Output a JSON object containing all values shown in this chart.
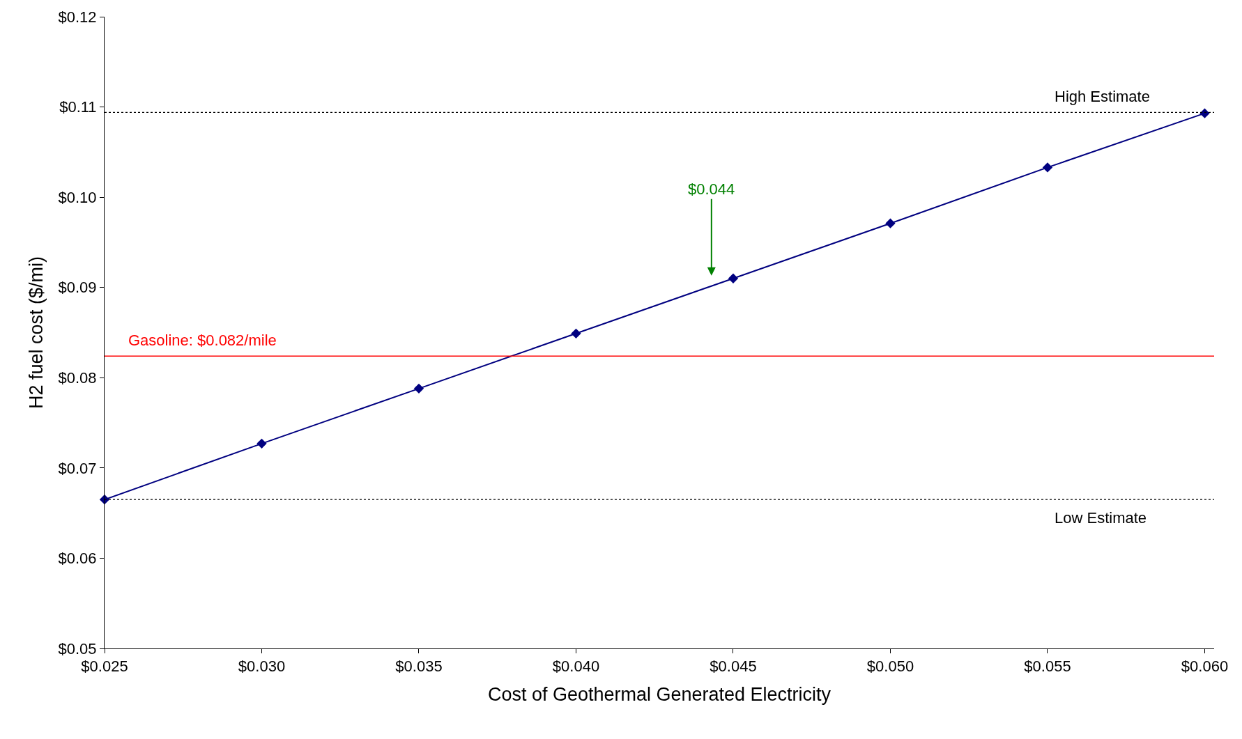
{
  "chart_data": {
    "type": "line",
    "xlabel": "Cost of Geothermal Generated Electricity",
    "ylabel": "H2 fuel cost ($/mi)",
    "x": [
      0.025,
      0.03,
      0.035,
      0.04,
      0.045,
      0.05,
      0.055,
      0.06
    ],
    "series": [
      {
        "color": "#000080",
        "values": [
          0.0665,
          0.0727,
          0.0788,
          0.0849,
          0.091,
          0.0971,
          0.1033,
          0.1093
        ]
      }
    ],
    "marker": "diamond",
    "line_style": "solid",
    "xlim": [
      0.025,
      0.0603
    ],
    "xticks": [
      {
        "value": 0.025,
        "label": "$0.025"
      },
      {
        "value": 0.03,
        "label": "$0.030"
      },
      {
        "value": 0.035,
        "label": "$0.035"
      },
      {
        "value": 0.04,
        "label": "$0.040"
      },
      {
        "value": 0.045,
        "label": "$0.045"
      },
      {
        "value": 0.05,
        "label": "$0.050"
      },
      {
        "value": 0.055,
        "label": "$0.055"
      },
      {
        "value": 0.06,
        "label": "$0.060"
      }
    ],
    "ylim": [
      0.05,
      0.12
    ],
    "yticks": [
      {
        "value": 0.05,
        "label": "$0.05"
      },
      {
        "value": 0.06,
        "label": "$0.06"
      },
      {
        "value": 0.07,
        "label": "$0.07"
      },
      {
        "value": 0.08,
        "label": "$0.08"
      },
      {
        "value": 0.09,
        "label": "$0.09"
      },
      {
        "value": 0.1,
        "label": "$0.10"
      },
      {
        "value": 0.11,
        "label": "$0.11"
      },
      {
        "value": 0.12,
        "label": "$0.12"
      }
    ],
    "ref_lines": [
      {
        "axis": "y",
        "value": 0.0824,
        "label": "Gasoline: $0.082/mile",
        "color": "#ff0000",
        "line_style": "solid"
      },
      {
        "axis": "y",
        "value": 0.1094,
        "label": "High Estimate",
        "color": "#000000",
        "line_style": "dotted"
      },
      {
        "axis": "y",
        "value": 0.0665,
        "label": "Low Estimate",
        "color": "#000000",
        "line_style": "dotted"
      }
    ],
    "annotations": [
      "$0.044"
    ]
  }
}
